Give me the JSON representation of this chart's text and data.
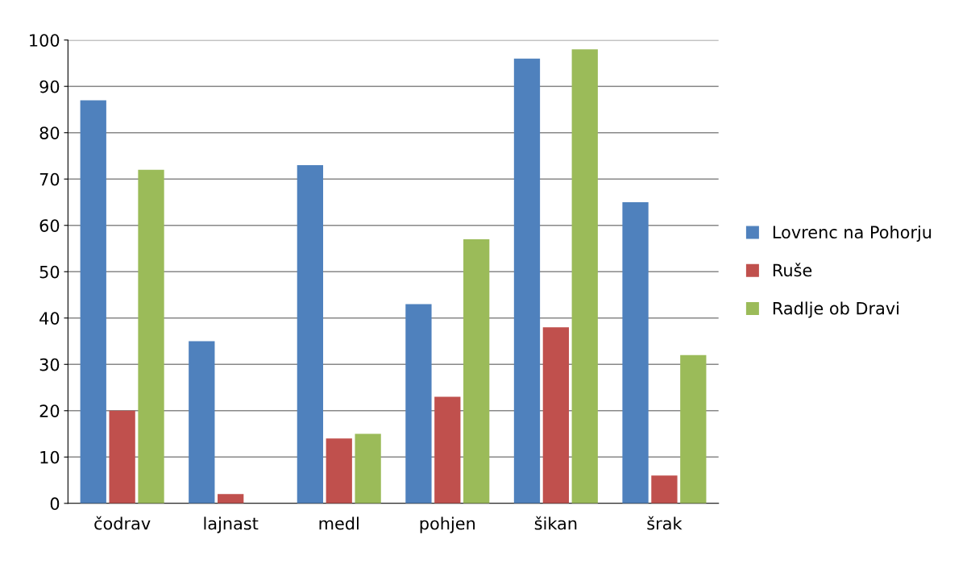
{
  "chart_data": {
    "type": "bar",
    "categories": [
      "čodrav",
      "lajnast",
      "medl",
      "pohjen",
      "šikan",
      "šrak"
    ],
    "series": [
      {
        "name": "Lovrenc na Pohorju",
        "color": "#4f81bd",
        "values": [
          87,
          35,
          73,
          43,
          96,
          65
        ]
      },
      {
        "name": "Ruše",
        "color": "#c0504d",
        "values": [
          20,
          2,
          14,
          23,
          38,
          6
        ]
      },
      {
        "name": "Radlje ob Dravi",
        "color": "#9bbb59",
        "values": [
          72,
          0,
          15,
          57,
          98,
          32
        ]
      }
    ],
    "ylim": [
      0,
      100
    ],
    "yticks": [
      0,
      10,
      20,
      30,
      40,
      50,
      60,
      70,
      80,
      90,
      100
    ],
    "grid": "y",
    "legend": "right"
  }
}
